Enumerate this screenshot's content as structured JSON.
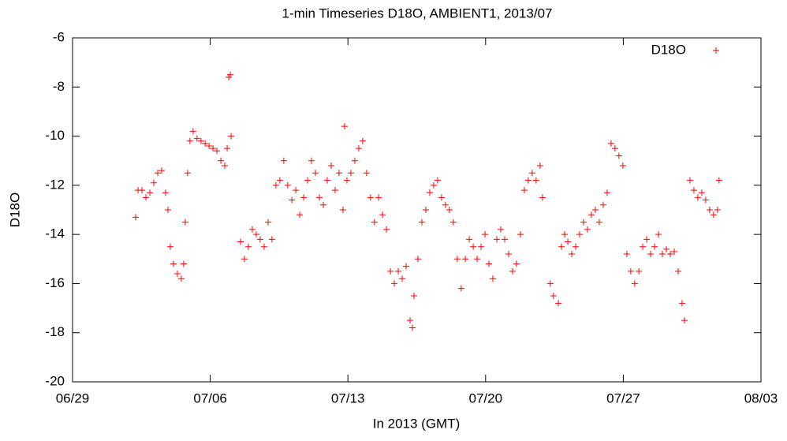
{
  "chart_data": {
    "type": "scatter",
    "title": "1-min Timeseries D18O, AMBIENT1, 2013/07",
    "x_label": "In 2013 (GMT)",
    "y_label": "D18O",
    "legend_position": "top-right",
    "marker": "+",
    "xlim": [
      180,
      215
    ],
    "xticks": [
      {
        "value": 180,
        "label": "06/29"
      },
      {
        "value": 187,
        "label": "07/06"
      },
      {
        "value": 194,
        "label": "07/13"
      },
      {
        "value": 201,
        "label": "07/20"
      },
      {
        "value": 208,
        "label": "07/27"
      },
      {
        "value": 215,
        "label": "08/03"
      }
    ],
    "ylim": [
      -20,
      -6
    ],
    "yticks": [
      -20,
      -18,
      -16,
      -14,
      -12,
      -10,
      -8,
      -6
    ],
    "series": [
      {
        "name": "D18O",
        "color": "#ff0000",
        "x": [
          183.21,
          183.33,
          183.53,
          183.73,
          183.93,
          184.13,
          184.33,
          184.53,
          184.73,
          184.85,
          184.97,
          185.13,
          185.33,
          185.53,
          185.65,
          185.73,
          185.85,
          185.97,
          186.13,
          186.33,
          186.53,
          186.74,
          186.94,
          187.14,
          187.34,
          187.54,
          187.74,
          187.86,
          187.94,
          188.02,
          188.06,
          188.54,
          188.74,
          188.94,
          189.14,
          189.34,
          189.54,
          189.74,
          189.94,
          190.14,
          190.34,
          190.54,
          190.74,
          190.94,
          191.15,
          191.35,
          191.55,
          191.75,
          191.95,
          192.15,
          192.35,
          192.55,
          192.75,
          192.95,
          193.15,
          193.35,
          193.55,
          193.75,
          193.83,
          193.95,
          194.15,
          194.35,
          194.55,
          194.75,
          194.95,
          195.15,
          195.35,
          195.56,
          195.76,
          195.96,
          196.16,
          196.36,
          196.56,
          196.76,
          196.96,
          197.16,
          197.28,
          197.36,
          197.56,
          197.76,
          197.96,
          198.16,
          198.36,
          198.56,
          198.76,
          198.96,
          199.16,
          199.36,
          199.56,
          199.76,
          199.97,
          200.17,
          200.37,
          200.57,
          200.77,
          200.97,
          201.17,
          201.37,
          201.57,
          201.77,
          201.97,
          202.17,
          202.37,
          202.57,
          202.77,
          202.97,
          203.17,
          203.37,
          203.57,
          203.77,
          203.89,
          204.29,
          204.45,
          204.7,
          204.86,
          205.02,
          205.18,
          205.38,
          205.58,
          205.78,
          205.98,
          206.18,
          206.38,
          206.58,
          206.78,
          206.98,
          207.18,
          207.38,
          207.58,
          207.78,
          207.98,
          208.18,
          208.38,
          208.58,
          208.79,
          208.99,
          209.19,
          209.39,
          209.59,
          209.79,
          209.99,
          210.19,
          210.39,
          210.59,
          210.79,
          210.99,
          211.11,
          211.39,
          211.59,
          211.79,
          211.99,
          212.19,
          212.39,
          212.59,
          212.79,
          212.87
        ],
        "values": [
          -13.3,
          -12.2,
          -12.2,
          -12.5,
          -12.3,
          -11.9,
          -11.5,
          -11.4,
          -12.3,
          -13.0,
          -14.5,
          -15.2,
          -15.6,
          -15.8,
          -15.2,
          -13.5,
          -11.5,
          -10.2,
          -9.8,
          -10.1,
          -10.2,
          -10.3,
          -10.4,
          -10.5,
          -10.6,
          -11.0,
          -11.2,
          -10.5,
          -7.6,
          -7.5,
          -10.0,
          -14.3,
          -15.0,
          -14.5,
          -13.8,
          -14.0,
          -14.2,
          -14.5,
          -13.5,
          -14.2,
          -12.0,
          -11.8,
          -11.0,
          -12.0,
          -12.6,
          -12.2,
          -13.2,
          -12.5,
          -11.8,
          -11.0,
          -11.5,
          -12.5,
          -12.8,
          -11.8,
          -11.2,
          -12.2,
          -11.5,
          -13.0,
          -9.6,
          -11.8,
          -11.5,
          -11.0,
          -10.5,
          -10.2,
          -11.5,
          -12.5,
          -13.5,
          -12.5,
          -13.2,
          -13.8,
          -15.5,
          -16.0,
          -15.5,
          -15.8,
          -15.3,
          -17.5,
          -17.8,
          -16.5,
          -15.0,
          -13.5,
          -13.0,
          -12.3,
          -12.0,
          -11.8,
          -12.5,
          -12.8,
          -13.0,
          -13.5,
          -15.0,
          -16.2,
          -15.0,
          -14.2,
          -14.5,
          -15.0,
          -14.5,
          -14.0,
          -15.2,
          -15.8,
          -14.2,
          -13.8,
          -14.2,
          -14.8,
          -15.5,
          -15.2,
          -14.0,
          -12.2,
          -11.8,
          -11.5,
          -11.8,
          -11.2,
          -12.5,
          -16.0,
          -16.5,
          -16.8,
          -14.5,
          -14.0,
          -14.3,
          -14.8,
          -14.5,
          -14.0,
          -13.5,
          -13.8,
          -13.2,
          -13.0,
          -13.5,
          -12.8,
          -12.3,
          -10.3,
          -10.5,
          -10.8,
          -11.2,
          -14.8,
          -15.5,
          -16.0,
          -15.5,
          -14.5,
          -14.2,
          -14.8,
          -14.5,
          -14.0,
          -14.8,
          -14.6,
          -14.8,
          -14.7,
          -15.5,
          -16.8,
          -17.5,
          -11.8,
          -12.2,
          -12.5,
          -12.3,
          -12.6,
          -13.0,
          -13.2,
          -13.0,
          -11.8
        ]
      }
    ]
  }
}
